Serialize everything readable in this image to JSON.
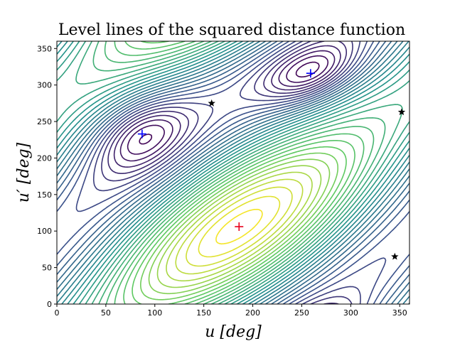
{
  "chart_data": {
    "type": "contour",
    "title": "Level lines of the squared distance function",
    "xlabel": "u [deg]",
    "ylabel": "u′ [deg]",
    "xlim": [
      0,
      360
    ],
    "ylim": [
      0,
      360
    ],
    "xticks": [
      0,
      50,
      100,
      150,
      200,
      250,
      300,
      350
    ],
    "yticks": [
      0,
      50,
      100,
      150,
      200,
      250,
      300,
      350
    ],
    "grid": false,
    "colormap": [
      "#440154",
      "#3b528b",
      "#21918c",
      "#5ec962",
      "#fde725"
    ],
    "minima": [
      {
        "u": 186,
        "v": 106,
        "color": "#e8001c"
      }
    ],
    "maxima": [
      {
        "u": 87,
        "v": 233,
        "color": "#0000ff"
      },
      {
        "u": 259,
        "v": 316,
        "color": "#0000ff"
      }
    ],
    "saddles": [
      {
        "u": 158,
        "v": 275
      },
      {
        "u": 352,
        "v": 263
      },
      {
        "u": 345,
        "v": 65
      }
    ]
  }
}
